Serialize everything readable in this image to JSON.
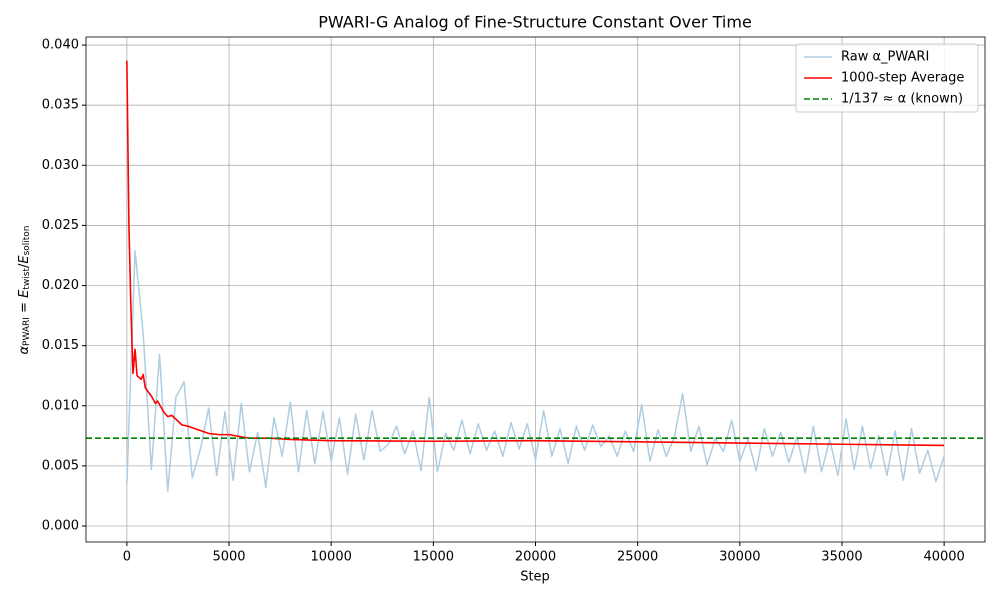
{
  "chart_data": {
    "type": "line",
    "title": "PWARI-G Analog of Fine-Structure Constant Over Time",
    "xlabel": "Step",
    "ylabel_parts": [
      "α",
      "PWARI",
      " = ",
      "E",
      "twist",
      "/",
      "E",
      "soliton"
    ],
    "series": [
      {
        "name": "Raw α_PWARI",
        "color": "#aecde2",
        "x": [
          0,
          400,
          800,
          1200,
          1600,
          2000,
          2400,
          2800,
          3200,
          3600,
          4000,
          4400,
          4800,
          5200,
          5600,
          6000,
          6400,
          6800,
          7200,
          7600,
          8000,
          8400,
          8800,
          9200,
          9600,
          10000,
          10400,
          10800,
          11200,
          11600,
          12000,
          12400,
          12800,
          13200,
          13600,
          14000,
          14400,
          14800,
          15200,
          15600,
          16000,
          16400,
          16800,
          17200,
          17600,
          18000,
          18400,
          18800,
          19200,
          19600,
          20000,
          20400,
          20800,
          21200,
          21600,
          22000,
          22400,
          22800,
          23200,
          23600,
          24000,
          24400,
          24800,
          25200,
          25600,
          26000,
          26400,
          26800,
          27200,
          27600,
          28000,
          28400,
          28800,
          29200,
          29600,
          30000,
          30400,
          30800,
          31200,
          31600,
          32000,
          32400,
          32800,
          33200,
          33600,
          34000,
          34400,
          34800,
          35200,
          35600,
          36000,
          36400,
          36800,
          37200,
          37600,
          38000,
          38400,
          38800,
          39200,
          39600,
          40000
        ],
        "values": [
          0.0035,
          0.0229,
          0.016,
          0.0047,
          0.0143,
          0.0029,
          0.0107,
          0.012,
          0.004,
          0.0064,
          0.0098,
          0.0042,
          0.0095,
          0.0038,
          0.0102,
          0.0045,
          0.0078,
          0.0032,
          0.009,
          0.0058,
          0.0103,
          0.0045,
          0.0096,
          0.0052,
          0.0095,
          0.0054,
          0.009,
          0.0043,
          0.0093,
          0.0055,
          0.0096,
          0.0062,
          0.0068,
          0.0083,
          0.006,
          0.0079,
          0.0046,
          0.0107,
          0.0045,
          0.0077,
          0.0063,
          0.0088,
          0.006,
          0.0085,
          0.0063,
          0.0079,
          0.0058,
          0.0086,
          0.0064,
          0.0085,
          0.0055,
          0.0096,
          0.0058,
          0.0081,
          0.0052,
          0.0083,
          0.0063,
          0.0084,
          0.0066,
          0.0075,
          0.0058,
          0.0079,
          0.0062,
          0.0101,
          0.0054,
          0.008,
          0.0058,
          0.0074,
          0.011,
          0.0062,
          0.0083,
          0.0051,
          0.0073,
          0.0062,
          0.0088,
          0.0054,
          0.0072,
          0.0046,
          0.0081,
          0.0058,
          0.0078,
          0.0053,
          0.0074,
          0.0044,
          0.0083,
          0.0045,
          0.0072,
          0.0042,
          0.0089,
          0.0047,
          0.0083,
          0.0048,
          0.0075,
          0.0042,
          0.0079,
          0.0038,
          0.0081,
          0.0044,
          0.0063,
          0.0037,
          0.0058
        ]
      },
      {
        "name": "1000-step Average",
        "color": "red",
        "x": [
          0,
          100,
          200,
          300,
          400,
          500,
          700,
          800,
          900,
          1200,
          1400,
          1500,
          1800,
          2000,
          2200,
          2700,
          3000,
          3500,
          4000,
          4500,
          5000,
          6000,
          7000,
          8000,
          10000,
          15000,
          20000,
          25000,
          30000,
          35000,
          40000
        ],
        "values": [
          0.0387,
          0.025,
          0.018,
          0.0127,
          0.0147,
          0.0125,
          0.0122,
          0.0126,
          0.0115,
          0.0108,
          0.0102,
          0.0104,
          0.0095,
          0.0091,
          0.0092,
          0.0084,
          0.0083,
          0.008,
          0.0077,
          0.0076,
          0.0076,
          0.0073,
          0.0073,
          0.0072,
          0.0071,
          0.00705,
          0.0071,
          0.007,
          0.0069,
          0.0068,
          0.0067
        ]
      }
    ],
    "reference_line": {
      "name": "1/137 ≈ α (known)",
      "value": 0.0073,
      "color": "green"
    },
    "xlim": [
      -2000,
      42000
    ],
    "ylim": [
      -0.00133,
      0.04067
    ],
    "xticks": [
      0,
      5000,
      10000,
      15000,
      20000,
      25000,
      30000,
      35000,
      40000
    ],
    "yticks": [
      {
        "value": 0,
        "label": "0.000"
      },
      {
        "value": 0.005,
        "label": "0.005"
      },
      {
        "value": 0.01,
        "label": "0.010"
      },
      {
        "value": 0.015,
        "label": "0.015"
      },
      {
        "value": 0.02,
        "label": "0.020"
      },
      {
        "value": 0.025,
        "label": "0.025"
      },
      {
        "value": 0.03,
        "label": "0.030"
      },
      {
        "value": 0.035,
        "label": "0.035"
      },
      {
        "value": 0.04,
        "label": "0.040"
      }
    ],
    "grid": true,
    "legend": "upper-right"
  }
}
